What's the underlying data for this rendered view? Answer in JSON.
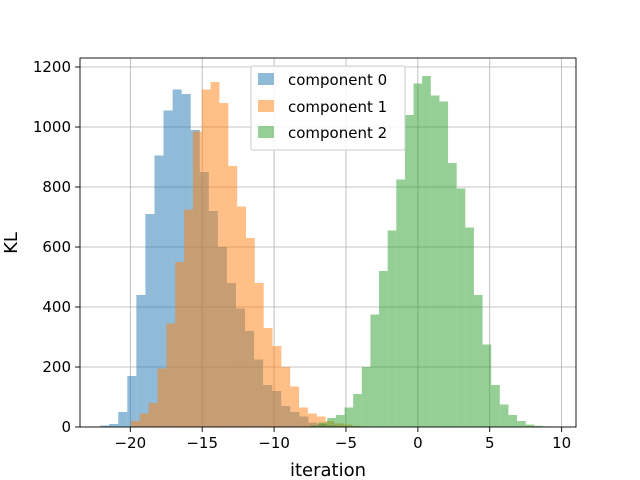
{
  "chart_data": {
    "type": "bar",
    "subtype": "histogram",
    "title": "",
    "xlabel": "iteration",
    "ylabel": "KL",
    "xlim": [
      -23.5,
      11
    ],
    "ylim": [
      0,
      1230
    ],
    "xticks": [
      -20,
      -15,
      -10,
      -5,
      0,
      5,
      10
    ],
    "xtick_labels": [
      "−20",
      "−15",
      "−10",
      "−5",
      "0",
      "5",
      "10"
    ],
    "yticks": [
      0,
      200,
      400,
      600,
      800,
      1000,
      1200
    ],
    "ytick_labels": [
      "0",
      "200",
      "400",
      "600",
      "800",
      "1000",
      "1200"
    ],
    "grid": true,
    "legend_position": "top-center",
    "bar_alpha": 0.5,
    "series": [
      {
        "name": "component 0",
        "color": "#1f77b4",
        "bin_width": 0.63,
        "bin_starts": [
          -22.1,
          -21.47,
          -20.84,
          -20.21,
          -19.58,
          -18.95,
          -18.32,
          -17.69,
          -17.06,
          -16.43,
          -15.8,
          -15.17,
          -14.54,
          -13.91,
          -13.28,
          -12.65,
          -12.02,
          -11.39,
          -10.76,
          -10.13,
          -9.5,
          -8.87,
          -8.24,
          -7.61,
          -6.98,
          -6.35,
          -5.72,
          -5.09
        ],
        "values": [
          5,
          10,
          50,
          170,
          440,
          710,
          905,
          1055,
          1125,
          1110,
          990,
          850,
          720,
          600,
          480,
          395,
          320,
          225,
          140,
          120,
          70,
          50,
          35,
          15,
          10,
          5,
          3,
          2
        ]
      },
      {
        "name": "component 1",
        "color": "#ff7f0e",
        "bin_width": 0.615,
        "bin_starts": [
          -19.95,
          -19.335,
          -18.72,
          -18.105,
          -17.49,
          -16.875,
          -16.26,
          -15.645,
          -15.03,
          -14.415,
          -13.8,
          -13.185,
          -12.57,
          -11.955,
          -11.34,
          -10.725,
          -10.11,
          -9.495,
          -8.88,
          -8.265,
          -7.65,
          -7.035,
          -6.42,
          -5.805,
          -5.19,
          -4.575
        ],
        "values": [
          20,
          45,
          80,
          195,
          345,
          550,
          725,
          985,
          1125,
          1150,
          1080,
          870,
          735,
          630,
          480,
          330,
          270,
          200,
          135,
          65,
          45,
          35,
          20,
          12,
          8,
          4
        ]
      },
      {
        "name": "component 2",
        "color": "#2ca02c",
        "bin_width": 0.6,
        "bin_starts": [
          -8.1,
          -7.5,
          -6.9,
          -6.3,
          -5.7,
          -5.1,
          -4.5,
          -3.9,
          -3.3,
          -2.7,
          -2.1,
          -1.5,
          -0.9,
          -0.3,
          0.3,
          0.9,
          1.5,
          2.1,
          2.7,
          3.3,
          3.9,
          4.5,
          5.1,
          5.7,
          6.3,
          6.9,
          7.5,
          8.1,
          8.7,
          9.3
        ],
        "values": [
          2,
          5,
          15,
          30,
          40,
          65,
          110,
          200,
          375,
          520,
          655,
          825,
          1040,
          1145,
          1170,
          1105,
          1085,
          880,
          795,
          665,
          440,
          275,
          140,
          75,
          40,
          20,
          8,
          4,
          2,
          1
        ]
      }
    ]
  }
}
